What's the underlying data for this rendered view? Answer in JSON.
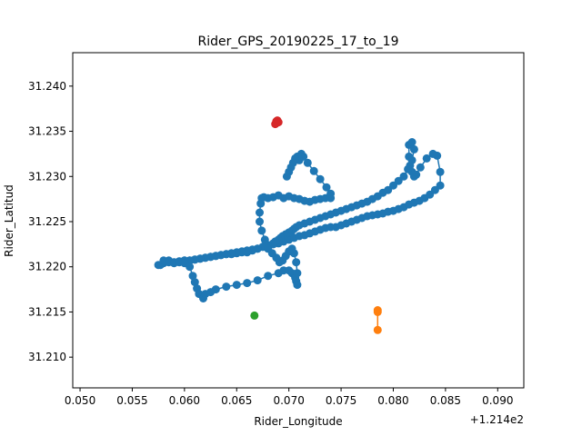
{
  "chart_data": {
    "type": "scatter",
    "title": "Rider_GPS_20190225_17_to_19",
    "xlabel": "Rider_Longitude",
    "ylabel": "Rider_Latitud",
    "x_offset_label": "+1.214e2",
    "xlim": [
      0.0493,
      0.0925
    ],
    "ylim": [
      31.2066,
      31.2437
    ],
    "x_ticks": [
      0.05,
      0.055,
      0.06,
      0.065,
      0.07,
      0.075,
      0.08,
      0.085,
      0.09
    ],
    "x_tick_labels": [
      "0.050",
      "0.055",
      "0.060",
      "0.065",
      "0.070",
      "0.075",
      "0.080",
      "0.085",
      "0.090"
    ],
    "y_ticks": [
      31.21,
      31.215,
      31.22,
      31.225,
      31.23,
      31.235,
      31.24
    ],
    "y_tick_labels": [
      "31.210",
      "31.215",
      "31.220",
      "31.225",
      "31.230",
      "31.235",
      "31.240"
    ],
    "grid": false,
    "series": [
      {
        "color": "#1f77b4",
        "connected": true,
        "x": [
          0.0575,
          0.058,
          0.0585,
          0.059,
          0.0595,
          0.06,
          0.0605,
          0.061,
          0.0615,
          0.062,
          0.0625,
          0.063,
          0.0635,
          0.064,
          0.0645,
          0.065,
          0.0655,
          0.066,
          0.0665,
          0.067,
          0.0675,
          0.068,
          0.0685,
          0.069,
          0.0695,
          0.07,
          0.0705,
          0.071,
          0.0715,
          0.072,
          0.0725,
          0.073,
          0.0735,
          0.074,
          0.0745,
          0.075,
          0.0755,
          0.076,
          0.0765,
          0.077,
          0.0775,
          0.078,
          0.0785,
          0.079,
          0.0795,
          0.08,
          0.0805,
          0.081,
          0.0815,
          0.082,
          0.0825,
          0.083,
          0.0835,
          0.084,
          0.0845,
          0.0845,
          0.0842,
          0.0838,
          0.0832,
          0.0826,
          0.0822,
          0.082,
          0.0818,
          0.0816,
          0.0815,
          0.0815,
          0.0818,
          0.082,
          0.0818,
          0.0814,
          0.081,
          0.0805,
          0.08,
          0.0795,
          0.079,
          0.0785,
          0.078,
          0.0775,
          0.077,
          0.0765,
          0.076,
          0.0755,
          0.075,
          0.0745,
          0.074,
          0.0735,
          0.073,
          0.0725,
          0.072,
          0.0715,
          0.071,
          0.0707,
          0.0705,
          0.0703,
          0.07,
          0.0697,
          0.0694,
          0.0692,
          0.069,
          0.0687,
          0.0685,
          0.068,
          0.0675,
          0.067,
          0.0665,
          0.066,
          0.0655,
          0.065,
          0.0645,
          0.064,
          0.0635,
          0.063,
          0.0625,
          0.062,
          0.0615,
          0.061,
          0.0605,
          0.06,
          0.0595,
          0.059,
          0.0585,
          0.058,
          0.0577,
          0.058,
          0.0585,
          0.059,
          0.0595,
          0.06,
          0.0605,
          0.0608,
          0.061,
          0.0612,
          0.0614,
          0.0618,
          0.062,
          0.0625,
          0.063,
          0.064,
          0.065,
          0.066,
          0.067,
          0.068,
          0.069,
          0.0695,
          0.07,
          0.0703,
          0.0706,
          0.0707,
          0.0708,
          0.0708,
          0.0707,
          0.0705,
          0.0703,
          0.07,
          0.0697,
          0.0694,
          0.0691,
          0.0688,
          0.0684,
          0.068,
          0.0677,
          0.0674,
          0.0672,
          0.0672,
          0.0673,
          0.0674,
          0.0676,
          0.068,
          0.0685,
          0.069,
          0.0695,
          0.07,
          0.0705,
          0.071,
          0.0715,
          0.072,
          0.0725,
          0.073,
          0.0735,
          0.074,
          0.074,
          0.0736,
          0.073,
          0.0724,
          0.0718,
          0.0714,
          0.0712,
          0.0711,
          0.071,
          0.0709,
          0.0708,
          0.0706,
          0.0704,
          0.0702,
          0.07,
          0.0698
        ],
        "y": [
          31.2202,
          31.2205,
          31.2207,
          31.2205,
          31.2206,
          31.2207,
          31.2207,
          31.2208,
          31.2209,
          31.221,
          31.2211,
          31.2212,
          31.2213,
          31.2214,
          31.2214,
          31.2215,
          31.2216,
          31.2216,
          31.2218,
          31.222,
          31.2222,
          31.2224,
          31.2225,
          31.2226,
          31.2228,
          31.223,
          31.2232,
          31.2234,
          31.2235,
          31.2237,
          31.2239,
          31.2241,
          31.2243,
          31.2244,
          31.2244,
          31.2246,
          31.2248,
          31.225,
          31.2252,
          31.2254,
          31.2256,
          31.2257,
          31.2258,
          31.2259,
          31.2261,
          31.2262,
          31.2264,
          31.2266,
          31.2269,
          31.2271,
          31.2273,
          31.2276,
          31.228,
          31.2285,
          31.229,
          31.2305,
          31.2323,
          31.2325,
          31.232,
          31.231,
          31.2302,
          31.23,
          31.2305,
          31.2312,
          31.2322,
          31.2335,
          31.2338,
          31.233,
          31.2318,
          31.2308,
          31.23,
          31.2295,
          31.229,
          31.2285,
          31.2282,
          31.2278,
          31.2275,
          31.2272,
          31.227,
          31.2268,
          31.2266,
          31.2264,
          31.2262,
          31.226,
          31.2258,
          31.2256,
          31.2254,
          31.2252,
          31.225,
          31.2248,
          31.2246,
          31.2244,
          31.2242,
          31.224,
          31.2238,
          31.2236,
          31.2234,
          31.2232,
          31.223,
          31.2228,
          31.2226,
          31.2224,
          31.2222,
          31.222,
          31.2219,
          31.2218,
          31.2217,
          31.2216,
          31.2215,
          31.2214,
          31.2213,
          31.2212,
          31.2211,
          31.221,
          31.2209,
          31.2208,
          31.2207,
          31.2207,
          31.2206,
          31.2205,
          31.2205,
          31.2204,
          31.2202,
          31.2207,
          31.2206,
          31.2204,
          31.2205,
          31.2204,
          31.22,
          31.219,
          31.2183,
          31.2176,
          31.217,
          31.2165,
          31.217,
          31.2172,
          31.2175,
          31.2178,
          31.218,
          31.2182,
          31.2185,
          31.219,
          31.2193,
          31.2196,
          31.2196,
          31.2193,
          31.2188,
          31.2184,
          31.218,
          31.2193,
          31.2205,
          31.2215,
          31.222,
          31.2217,
          31.2212,
          31.2207,
          31.2205,
          31.221,
          31.2215,
          31.222,
          31.223,
          31.224,
          31.225,
          31.226,
          31.227,
          31.2276,
          31.2277,
          31.2276,
          31.2277,
          31.2279,
          31.2276,
          31.2278,
          31.2276,
          31.2275,
          31.2273,
          31.2272,
          31.2274,
          31.2275,
          31.2276,
          31.2276,
          31.2281,
          31.2288,
          31.2297,
          31.2306,
          31.2315,
          31.2322,
          31.2325,
          31.2322,
          31.2318,
          31.232,
          31.2322,
          31.232,
          31.2315,
          31.231,
          31.2305,
          31.23
        ]
      },
      {
        "color": "#ff7f0e",
        "connected": true,
        "x": [
          0.0785,
          0.0785,
          0.0785
        ],
        "y": [
          31.2152,
          31.215,
          31.213
        ]
      },
      {
        "color": "#2ca02c",
        "connected": false,
        "x": [
          0.0667
        ],
        "y": [
          31.2146
        ]
      },
      {
        "color": "#d62728",
        "connected": true,
        "x": [
          0.0687,
          0.0688,
          0.0689,
          0.069,
          0.0688
        ],
        "y": [
          31.2358,
          31.2361,
          31.2362,
          31.236,
          31.2359
        ]
      }
    ]
  }
}
